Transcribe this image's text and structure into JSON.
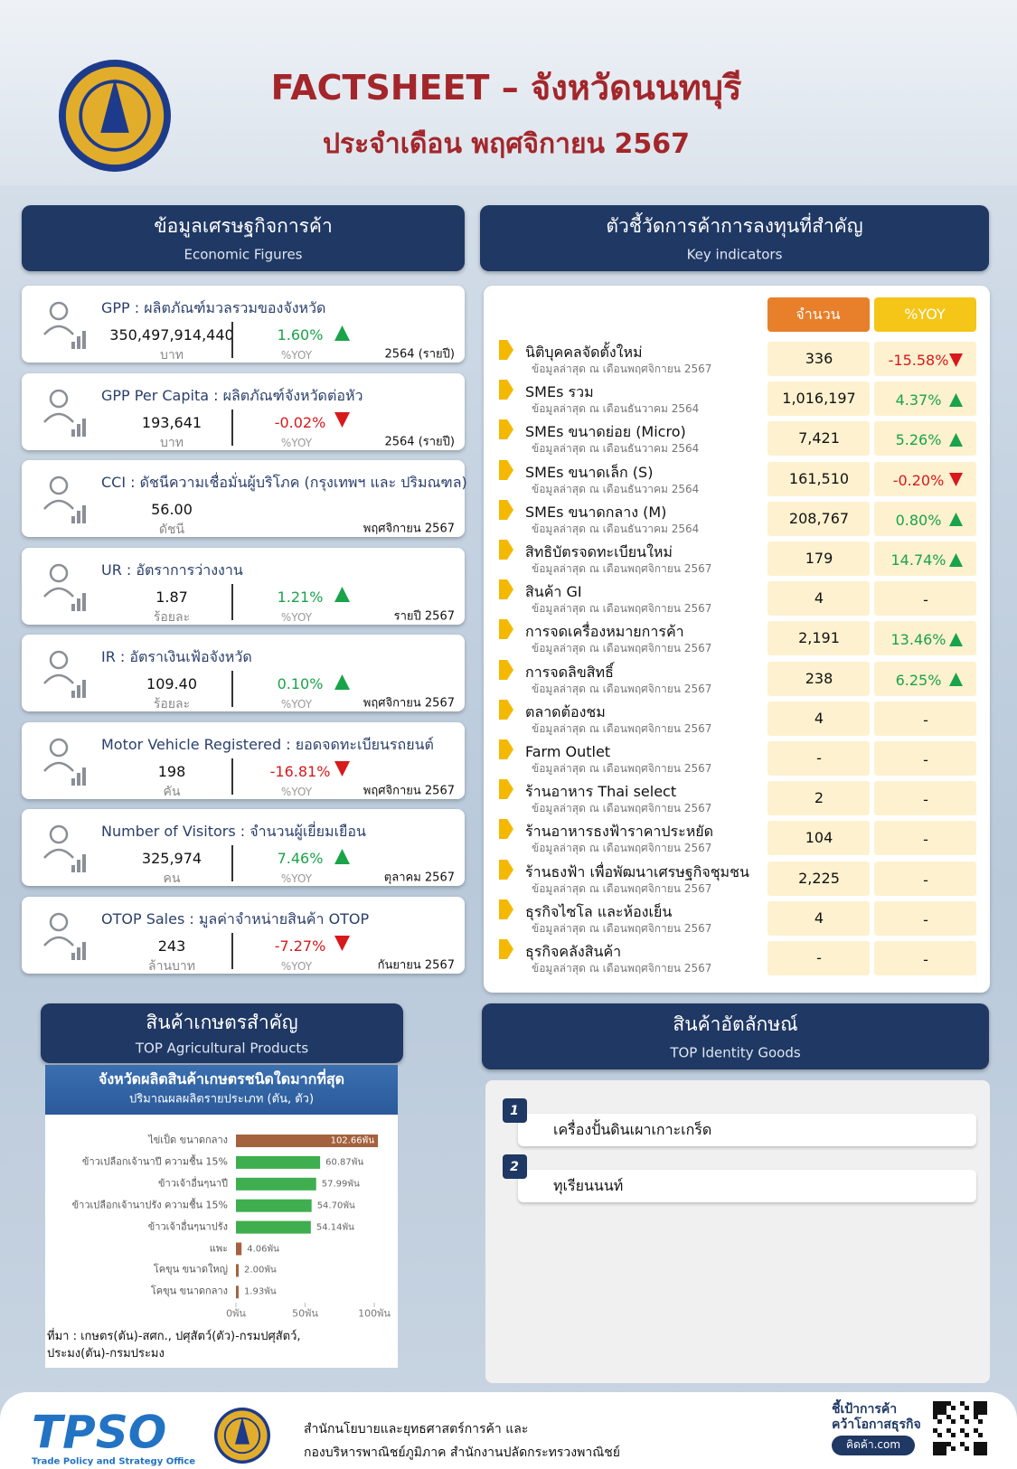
{
  "header": {
    "title": "FACTSHEET – จังหวัดนนทบุรี",
    "subtitle": "ประจำเดือน พฤศจิกายน 2567"
  },
  "economic": {
    "title": "ข้อมูลเศรษฐกิจการค้า",
    "subtitle": "Economic Figures",
    "change_label": "%YOY",
    "items": [
      {
        "label": "GPP : ผลิตภัณฑ์มวลรวมของจังหวัด",
        "value": "350,497,914,440",
        "unit": "บาท",
        "change": "1.60%",
        "direction": "up",
        "period": "2564 (รายปี)"
      },
      {
        "label": "GPP Per Capita : ผลิตภัณฑ์จังหวัดต่อหัว",
        "value": "193,641",
        "unit": "บาท",
        "change": "-0.02%",
        "direction": "down",
        "period": "2564 (รายปี)"
      },
      {
        "label": "CCI : ดัชนีความเชื่อมั่นผู้บริโภค (กรุงเทพฯ และ ปริมณฑล)",
        "value": "56.00",
        "unit": "ดัชนี",
        "change": null,
        "direction": null,
        "period": "พฤศจิกายน 2567"
      },
      {
        "label": "UR : อัตราการว่างงาน",
        "value": "1.87",
        "unit": "ร้อยละ",
        "change": "1.21%",
        "direction": "up",
        "period": "รายปี 2567"
      },
      {
        "label": "IR : อัตราเงินเฟ้อจังหวัด",
        "value": "109.40",
        "unit": "ร้อยละ",
        "change": "0.10%",
        "direction": "up",
        "period": "พฤศจิกายน 2567"
      },
      {
        "label": "Motor Vehicle Registered : ยอดจดทะเบียนรถยนต์",
        "value": "198",
        "unit": "คัน",
        "change": "-16.81%",
        "direction": "down",
        "period": "พฤศจิกายน 2567"
      },
      {
        "label": "Number of Visitors : จำนวนผู้เยี่ยมเยือน",
        "value": "325,974",
        "unit": "คน",
        "change": "7.46%",
        "direction": "up",
        "period": "ตุลาคม 2567"
      },
      {
        "label": "OTOP Sales : มูลค่าจำหน่ายสินค้า OTOP",
        "value": "243",
        "unit": "ล้านบาท",
        "change": "-7.27%",
        "direction": "down",
        "period": "กันยายน 2567"
      }
    ]
  },
  "indicators": {
    "title": "ตัวชี้วัดการค้าการลงทุนที่สำคัญ",
    "subtitle": "Key indicators",
    "columns": [
      "จำนวน",
      "%YOY"
    ],
    "rows": [
      {
        "name": "นิติบุคคลจัดตั้งใหม่",
        "note": "ข้อมูลล่าสุด ณ เดือนพฤศจิกายน 2567",
        "count": "336",
        "yoy": "-15.58%",
        "direction": "down"
      },
      {
        "name": "SMEs รวม",
        "note": "ข้อมูลล่าสุด ณ เดือนธันวาคม 2564",
        "count": "1,016,197",
        "yoy": "4.37%",
        "direction": "up"
      },
      {
        "name": "SMEs ขนาดย่อย (Micro)",
        "note": "ข้อมูลล่าสุด ณ เดือนธันวาคม 2564",
        "count": "7,421",
        "yoy": "5.26%",
        "direction": "up"
      },
      {
        "name": "SMEs ขนาดเล็ก (S)",
        "note": "ข้อมูลล่าสุด ณ เดือนธันวาคม 2564",
        "count": "161,510",
        "yoy": "-0.20%",
        "direction": "down"
      },
      {
        "name": "SMEs ขนาดกลาง (M)",
        "note": "ข้อมูลล่าสุด ณ เดือนธันวาคม 2564",
        "count": "208,767",
        "yoy": "0.80%",
        "direction": "up"
      },
      {
        "name": "สิทธิบัตรจดทะเบียนใหม่",
        "note": "ข้อมูลล่าสุด ณ เดือนพฤศจิกายน 2567",
        "count": "179",
        "yoy": "14.74%",
        "direction": "up"
      },
      {
        "name": "สินค้า GI",
        "note": "ข้อมูลล่าสุด ณ เดือนพฤศจิกายน 2567",
        "count": "4",
        "yoy": "-",
        "direction": null
      },
      {
        "name": "การจดเครื่องหมายการค้า",
        "note": "ข้อมูลล่าสุด ณ เดือนพฤศจิกายน 2567",
        "count": "2,191",
        "yoy": "13.46%",
        "direction": "up"
      },
      {
        "name": "การจดลิขสิทธิ์",
        "note": "ข้อมูลล่าสุด ณ เดือนพฤศจิกายน 2567",
        "count": "238",
        "yoy": "6.25%",
        "direction": "up"
      },
      {
        "name": "ตลาดต้องชม",
        "note": "ข้อมูลล่าสุด ณ เดือนพฤศจิกายน 2567",
        "count": "4",
        "yoy": "-",
        "direction": null
      },
      {
        "name": "Farm Outlet",
        "note": "ข้อมูลล่าสุด ณ เดือนพฤศจิกายน 2567",
        "count": "-",
        "yoy": "-",
        "direction": null
      },
      {
        "name": "ร้านอาหาร Thai select",
        "note": "ข้อมูลล่าสุด ณ เดือนพฤศจิกายน 2567",
        "count": "2",
        "yoy": "-",
        "direction": null
      },
      {
        "name": "ร้านอาหารธงฟ้าราคาประหยัด",
        "note": "ข้อมูลล่าสุด ณ เดือนพฤศจิกายน 2567",
        "count": "104",
        "yoy": "-",
        "direction": null
      },
      {
        "name": "ร้านธงฟ้า เพื่อพัฒนาเศรษฐกิจชุมชน",
        "note": "ข้อมูลล่าสุด ณ เดือนพฤศจิกายน 2567",
        "count": "2,225",
        "yoy": "-",
        "direction": null
      },
      {
        "name": "ธุรกิจไซโล และห้องเย็น",
        "note": "ข้อมูลล่าสุด ณ เดือนพฤศจิกายน 2567",
        "count": "4",
        "yoy": "-",
        "direction": null
      },
      {
        "name": "ธุรกิจคลังสินค้า",
        "note": "ข้อมูลล่าสุด ณ เดือนพฤศจิกายน 2567",
        "count": "-",
        "yoy": "-",
        "direction": null
      }
    ]
  },
  "agriculture": {
    "title": "สินค้าเกษตรสำคัญ",
    "subtitle": "TOP Agricultural Products"
  },
  "chart_data": {
    "type": "bar",
    "orientation": "horizontal",
    "title": "จังหวัดผลิตสินค้าเกษตรชนิดใดมากที่สุด",
    "subtitle": "ปริมาณผลผลิตรายประเภท (ตัน, ตัว)",
    "categories": [
      "ไข่เป็ด ขนาดกลาง",
      "ข้าวเปลือกเจ้านาปี ความชื้น 15%",
      "ข้าวเจ้าอื่นๆนาปี",
      "ข้าวเปลือกเจ้านาปรัง ความชื้น 15%",
      "ข้าวเจ้าอื่นๆนาปรัง",
      "แพะ",
      "โคขุน ขนาดใหญ่",
      "โคขุน ขนาดกลาง"
    ],
    "values": [
      102.66,
      60.87,
      57.99,
      54.7,
      54.14,
      4.06,
      2,
      1.93
    ],
    "value_labels": [
      "102.66พัน",
      "60.87พัน",
      "57.99พัน",
      "54.70พัน",
      "54.14พัน",
      "4.06พัน",
      "2.00พัน",
      "1.93พัน"
    ],
    "colors": [
      "#a5623e",
      "#3fae4f",
      "#3fae4f",
      "#3fae4f",
      "#3fae4f",
      "#a5623e",
      "#a5623e",
      "#a5623e"
    ],
    "xlim": [
      0,
      105
    ],
    "xticks": [
      {
        "value": 0,
        "label": "0พัน"
      },
      {
        "value": 50,
        "label": "50พัน"
      },
      {
        "value": 100,
        "label": "100พัน"
      }
    ],
    "source": "ที่มา : เกษตร(ตัน)-สศก., ปศุสัตว์(ตัว)-กรมปศุสัตว์, ประมง(ตัน)-กรมประมง"
  },
  "identity": {
    "title": "สินค้าอัตลักษณ์",
    "subtitle": "TOP Identity Goods",
    "items": [
      {
        "rank": 1,
        "name": "เครื่องปั้นดินเผาเกาะเกร็ด"
      },
      {
        "rank": 2,
        "name": "ทุเรียนนนท์"
      }
    ]
  },
  "footer": {
    "logo": "TPSO",
    "logo_caption": "Trade Policy and Strategy Office",
    "org_line1": "สำนักนโยบายและยุทธศาสตร์การค้า และ",
    "org_line2": "กองบริหารพาณิชย์ภูมิภาค สำนักงานปลัดกระทรวงพาณิชย์",
    "slogan1": "ชี้เป้าการค้า",
    "slogan2": "คว้าโอกาสธุรกิจ",
    "site": "คิดค้า.com"
  }
}
